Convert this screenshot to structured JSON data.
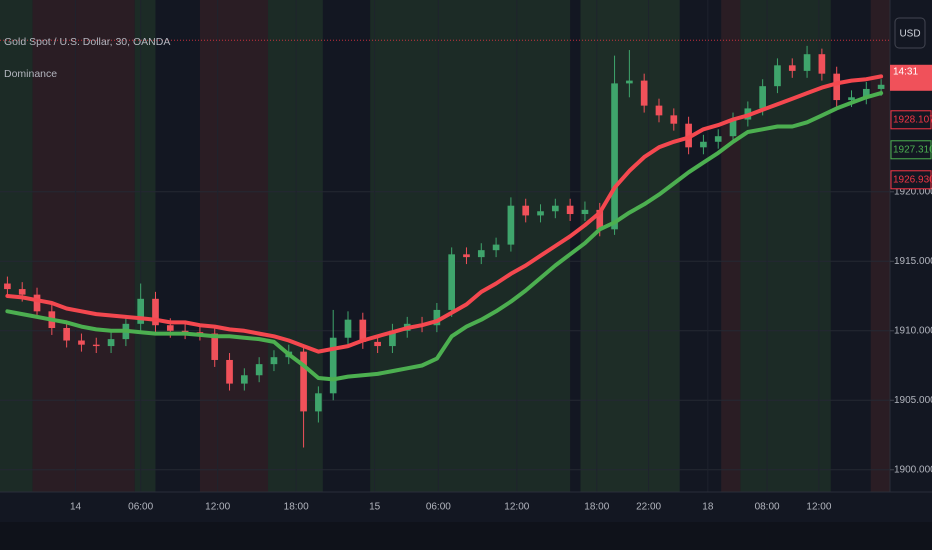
{
  "chart_data": {
    "type": "candlestick",
    "title": "Gold Spot / U.S. Dollar, 30, OANDA",
    "indicator": "Dominance",
    "currency": "USD",
    "countdown": "14:31",
    "x": [
      0,
      1,
      2,
      3,
      4,
      5,
      6,
      7,
      8,
      9,
      10,
      11,
      12,
      13,
      14,
      15,
      16,
      17,
      18,
      19,
      20,
      21,
      22,
      23,
      24,
      25,
      26,
      27,
      28,
      29,
      30,
      31,
      32,
      33,
      34,
      35,
      36,
      37,
      38,
      39,
      40,
      41,
      42,
      43,
      44,
      45,
      46,
      47,
      48,
      49,
      50,
      51,
      52,
      53,
      54,
      55,
      56,
      57,
      58,
      59
    ],
    "open": [
      1913.4,
      1913.0,
      1912.6,
      1911.4,
      1910.2,
      1909.3,
      1909.0,
      1908.9,
      1909.4,
      1910.5,
      1912.3,
      1910.4,
      1910.0,
      1909.9,
      1909.8,
      1907.9,
      1906.2,
      1906.8,
      1907.6,
      1908.1,
      1908.5,
      1904.2,
      1905.5,
      1909.5,
      1910.8,
      1909.2,
      1908.9,
      1910.0,
      1910.5,
      1910.4,
      1911.5,
      1915.5,
      1915.3,
      1915.8,
      1916.2,
      1919.0,
      1918.3,
      1918.6,
      1919.0,
      1918.4,
      1918.7,
      1917.3,
      1927.8,
      1928.0,
      1926.2,
      1925.5,
      1924.9,
      1923.2,
      1923.6,
      1924.0,
      1925.2,
      1926.0,
      1927.6,
      1929.1,
      1928.7,
      1929.9,
      1928.5,
      1926.6,
      1926.8,
      1927.4
    ],
    "high": [
      1913.9,
      1913.5,
      1913.1,
      1911.9,
      1910.7,
      1909.8,
      1909.5,
      1909.9,
      1911.0,
      1913.4,
      1912.8,
      1910.9,
      1910.5,
      1910.4,
      1910.3,
      1908.4,
      1907.3,
      1908.1,
      1908.6,
      1909.0,
      1909.0,
      1906.0,
      1911.5,
      1911.4,
      1911.3,
      1909.7,
      1910.5,
      1911.0,
      1911.0,
      1912.0,
      1916.0,
      1916.0,
      1916.3,
      1916.7,
      1919.6,
      1919.5,
      1919.1,
      1919.5,
      1919.5,
      1919.3,
      1919.2,
      1929.8,
      1930.2,
      1928.5,
      1926.7,
      1926.0,
      1925.4,
      1924.1,
      1924.5,
      1925.7,
      1926.5,
      1928.1,
      1929.6,
      1929.6,
      1930.5,
      1930.3,
      1929.0,
      1927.3,
      1927.9,
      1928.1
    ],
    "low": [
      1912.5,
      1912.1,
      1910.9,
      1909.7,
      1908.8,
      1908.5,
      1908.4,
      1908.4,
      1908.9,
      1910.0,
      1909.9,
      1909.5,
      1909.4,
      1909.3,
      1907.4,
      1905.7,
      1905.7,
      1906.3,
      1907.1,
      1907.6,
      1901.6,
      1903.4,
      1905.0,
      1909.0,
      1908.7,
      1908.4,
      1908.4,
      1909.5,
      1909.9,
      1909.9,
      1911.0,
      1914.8,
      1914.8,
      1915.3,
      1915.7,
      1917.8,
      1917.8,
      1918.1,
      1917.9,
      1917.9,
      1916.8,
      1916.9,
      1926.8,
      1925.7,
      1925.0,
      1924.4,
      1922.7,
      1922.7,
      1923.1,
      1923.5,
      1924.7,
      1925.5,
      1927.1,
      1928.2,
      1928.2,
      1928.0,
      1926.1,
      1926.1,
      1926.3,
      1926.9
    ],
    "close": [
      1913.0,
      1912.6,
      1911.4,
      1910.2,
      1909.3,
      1909.0,
      1908.9,
      1909.4,
      1910.5,
      1912.3,
      1910.4,
      1910.0,
      1909.9,
      1909.8,
      1907.9,
      1906.2,
      1906.8,
      1907.6,
      1908.1,
      1908.5,
      1904.2,
      1905.5,
      1909.5,
      1910.8,
      1909.2,
      1908.9,
      1910.0,
      1910.5,
      1910.4,
      1911.5,
      1915.5,
      1915.3,
      1915.8,
      1916.2,
      1919.0,
      1918.3,
      1918.6,
      1919.0,
      1918.4,
      1918.7,
      1917.3,
      1927.8,
      1928.0,
      1926.2,
      1925.5,
      1924.9,
      1923.2,
      1923.6,
      1924.0,
      1925.2,
      1926.0,
      1927.6,
      1929.1,
      1928.7,
      1929.9,
      1928.5,
      1926.6,
      1926.8,
      1927.4,
      1927.7
    ],
    "up_color": "#3fa56c",
    "down_color": "#f0515a",
    "lines": [
      {
        "color": "#f4484f",
        "values": [
          1912.5,
          1912.4,
          1912.2,
          1912.0,
          1911.6,
          1911.4,
          1911.2,
          1911.1,
          1911.0,
          1910.9,
          1910.8,
          1910.6,
          1910.6,
          1910.4,
          1910.3,
          1910.1,
          1910.0,
          1909.8,
          1909.6,
          1909.3,
          1908.9,
          1908.5,
          1908.7,
          1908.9,
          1909.3,
          1909.6,
          1909.9,
          1910.2,
          1910.4,
          1910.7,
          1911.3,
          1911.9,
          1912.8,
          1913.4,
          1914.1,
          1914.7,
          1915.4,
          1916.1,
          1916.8,
          1917.6,
          1918.5,
          1920.3,
          1921.5,
          1922.5,
          1923.2,
          1923.6,
          1923.9,
          1924.5,
          1924.8,
          1925.2,
          1925.5,
          1925.9,
          1926.3,
          1926.7,
          1927.1,
          1927.5,
          1927.8,
          1928.0,
          1928.1,
          1928.3
        ]
      },
      {
        "color": "#4caf50",
        "values": [
          1911.4,
          1911.2,
          1911.0,
          1910.8,
          1910.6,
          1910.3,
          1910.1,
          1910.0,
          1910.0,
          1909.9,
          1909.8,
          1909.8,
          1909.8,
          1909.7,
          1909.6,
          1909.6,
          1909.5,
          1909.4,
          1909.2,
          1908.3,
          1907.5,
          1906.6,
          1906.5,
          1906.7,
          1906.8,
          1906.9,
          1907.1,
          1907.3,
          1907.5,
          1908.0,
          1909.6,
          1910.3,
          1910.8,
          1911.4,
          1912.1,
          1912.9,
          1913.8,
          1914.7,
          1915.5,
          1916.3,
          1917.3,
          1917.8,
          1918.5,
          1919.1,
          1919.8,
          1920.6,
          1921.4,
          1922.1,
          1922.8,
          1923.6,
          1924.3,
          1924.5,
          1924.7,
          1924.7,
          1925.0,
          1925.5,
          1926.0,
          1926.4,
          1926.8,
          1927.1
        ]
      }
    ],
    "bands": [
      {
        "from": -0.5,
        "to": 1.7,
        "color": "#1c2b26"
      },
      {
        "from": 1.7,
        "to": 8.6,
        "color": "#2a1d24"
      },
      {
        "from": 8.6,
        "to": 10,
        "color": "#1c2b26"
      },
      {
        "from": 13,
        "to": 17.6,
        "color": "#2a1d24"
      },
      {
        "from": 17.6,
        "to": 21.3,
        "color": "#1c2b26"
      },
      {
        "from": 24.5,
        "to": 38,
        "color": "#1c2b26"
      },
      {
        "from": 38.7,
        "to": 45.4,
        "color": "#1e2d27"
      },
      {
        "from": 48.2,
        "to": 49.5,
        "color": "#2a1d24"
      },
      {
        "from": 49.5,
        "to": 55.6,
        "color": "#1c2b26"
      },
      {
        "from": 58.3,
        "to": 59.6,
        "color": "#2a1d24"
      }
    ],
    "price_line": {
      "value": 1930.9,
      "color": "#f23645"
    },
    "price_labels": [
      {
        "value": 1928.107,
        "label": "1928.107",
        "color": "#f23645"
      },
      {
        "value": 1927.31,
        "label": "1927.310",
        "color": "#4caf50"
      },
      {
        "value": 1926.93,
        "label": "1926.930",
        "color": "#f23645"
      }
    ],
    "xlim": [
      -0.5,
      59.6
    ],
    "ylim": [
      1898.4,
      1933.8
    ],
    "xticks": [
      {
        "value": 4.6,
        "label": "14"
      },
      {
        "value": 9.0,
        "label": "06:00"
      },
      {
        "value": 14.2,
        "label": "12:00"
      },
      {
        "value": 19.5,
        "label": "18:00"
      },
      {
        "value": 24.8,
        "label": "15"
      },
      {
        "value": 29.1,
        "label": "06:00"
      },
      {
        "value": 34.4,
        "label": "12:00"
      },
      {
        "value": 39.8,
        "label": "18:00"
      },
      {
        "value": 43.3,
        "label": "22:00"
      },
      {
        "value": 47.3,
        "label": "18"
      },
      {
        "value": 51.3,
        "label": "08:00"
      },
      {
        "value": 54.8,
        "label": "12:00"
      }
    ],
    "yticks": [
      {
        "value": 1900,
        "label": "1900.000"
      },
      {
        "value": 1905,
        "label": "1905.000"
      },
      {
        "value": 1910,
        "label": "1910.000"
      },
      {
        "value": 1915,
        "label": "1915.000"
      },
      {
        "value": 1920,
        "label": "1920.000"
      }
    ],
    "grid": true
  }
}
